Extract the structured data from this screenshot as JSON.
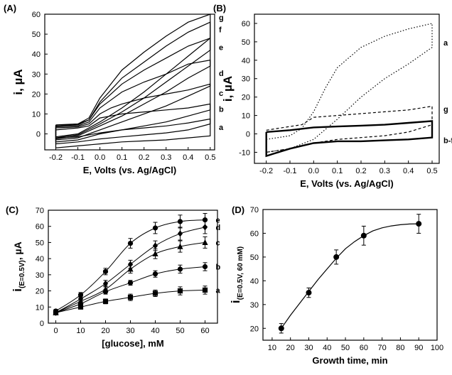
{
  "chart_data": [
    {
      "panel_label": "(A)",
      "type": "line",
      "xlabel": "E, Volts (vs. Ag/AgCl)",
      "ylabel": "i, µA",
      "xlim": [
        -0.25,
        0.52
      ],
      "ylim": [
        -8,
        60
      ],
      "x_ticks": [
        -0.2,
        -0.1,
        0.0,
        0.1,
        0.2,
        0.3,
        0.4,
        0.5
      ],
      "x_tick_labels": [
        "-0.2",
        "-0.1",
        "0.0",
        "0.1",
        "0.2",
        "0.3",
        "0.4",
        "0.5"
      ],
      "y_ticks": [
        0,
        10,
        20,
        30,
        40,
        50,
        60
      ],
      "y_tick_labels": [
        "0",
        "10",
        "20",
        "30",
        "40",
        "50",
        "60"
      ],
      "curve_type": "cyclic voltammogram",
      "series": [
        {
          "name": "a",
          "upper": [
            [
              -0.2,
              -2
            ],
            [
              -0.1,
              -1.5
            ],
            [
              0.0,
              0.5
            ],
            [
              0.1,
              2
            ],
            [
              0.2,
              3
            ],
            [
              0.3,
              4
            ],
            [
              0.4,
              5.5
            ],
            [
              0.5,
              7.5
            ]
          ],
          "lower": [
            [
              -0.2,
              -7
            ],
            [
              -0.1,
              -6
            ],
            [
              0.0,
              -5
            ],
            [
              0.1,
              -4
            ],
            [
              0.2,
              -3.5
            ],
            [
              0.3,
              -3
            ],
            [
              0.4,
              -2
            ],
            [
              0.5,
              -1
            ]
          ]
        },
        {
          "name": "b",
          "upper": [
            [
              -0.2,
              2
            ],
            [
              -0.1,
              3
            ],
            [
              -0.05,
              4
            ],
            [
              0.0,
              8
            ],
            [
              0.05,
              9
            ],
            [
              0.1,
              10
            ],
            [
              0.2,
              11
            ],
            [
              0.3,
              12
            ],
            [
              0.4,
              13
            ],
            [
              0.5,
              15
            ]
          ],
          "lower": [
            [
              -0.2,
              -5
            ],
            [
              -0.1,
              -4
            ],
            [
              0.0,
              -2.5
            ],
            [
              0.1,
              -1.5
            ],
            [
              0.2,
              -0.5
            ],
            [
              0.3,
              0.5
            ],
            [
              0.4,
              2
            ],
            [
              0.5,
              5
            ]
          ]
        },
        {
          "name": "c",
          "upper": [
            [
              -0.2,
              3
            ],
            [
              -0.1,
              3.5
            ],
            [
              -0.05,
              5
            ],
            [
              0.0,
              10
            ],
            [
              0.05,
              13
            ],
            [
              0.1,
              15
            ],
            [
              0.2,
              18
            ],
            [
              0.3,
              20
            ],
            [
              0.4,
              22
            ],
            [
              0.5,
              25
            ]
          ],
          "lower": [
            [
              -0.2,
              -4
            ],
            [
              -0.1,
              -3
            ],
            [
              0.0,
              0
            ],
            [
              0.1,
              2
            ],
            [
              0.2,
              4
            ],
            [
              0.3,
              6
            ],
            [
              0.4,
              9
            ],
            [
              0.5,
              12
            ]
          ]
        },
        {
          "name": "d",
          "upper": [
            [
              -0.2,
              3.5
            ],
            [
              -0.1,
              4
            ],
            [
              -0.05,
              6
            ],
            [
              0.0,
              13
            ],
            [
              0.05,
              17
            ],
            [
              0.1,
              21
            ],
            [
              0.2,
              26
            ],
            [
              0.3,
              30
            ],
            [
              0.4,
              35
            ],
            [
              0.5,
              37
            ]
          ],
          "lower": [
            [
              -0.2,
              -3
            ],
            [
              -0.1,
              -2
            ],
            [
              0.0,
              2
            ],
            [
              0.1,
              6
            ],
            [
              0.2,
              10
            ],
            [
              0.3,
              14
            ],
            [
              0.4,
              19
            ],
            [
              0.5,
              24
            ]
          ]
        },
        {
          "name": "e",
          "upper": [
            [
              -0.2,
              4
            ],
            [
              -0.1,
              4.5
            ],
            [
              -0.05,
              7
            ],
            [
              0.0,
              15
            ],
            [
              0.05,
              20
            ],
            [
              0.1,
              25
            ],
            [
              0.2,
              32
            ],
            [
              0.3,
              38
            ],
            [
              0.4,
              44
            ],
            [
              0.5,
              48
            ]
          ],
          "lower": [
            [
              -0.2,
              -2.5
            ],
            [
              -0.1,
              -1
            ],
            [
              0.0,
              4
            ],
            [
              0.1,
              9
            ],
            [
              0.2,
              15
            ],
            [
              0.3,
              21
            ],
            [
              0.4,
              28
            ],
            [
              0.5,
              34
            ]
          ]
        },
        {
          "name": "f",
          "upper": [
            [
              -0.2,
              4
            ],
            [
              -0.1,
              5
            ],
            [
              -0.05,
              7
            ],
            [
              0.0,
              16
            ],
            [
              0.05,
              22
            ],
            [
              0.1,
              28
            ],
            [
              0.2,
              36
            ],
            [
              0.3,
              44
            ],
            [
              0.4,
              51
            ],
            [
              0.5,
              56
            ]
          ],
          "lower": [
            [
              -0.2,
              -2
            ],
            [
              -0.1,
              -0.5
            ],
            [
              0.0,
              5
            ],
            [
              0.1,
              11
            ],
            [
              0.2,
              18
            ],
            [
              0.3,
              26
            ],
            [
              0.4,
              34
            ],
            [
              0.5,
              42
            ]
          ]
        },
        {
          "name": "g",
          "upper": [
            [
              -0.2,
              4.5
            ],
            [
              -0.1,
              5
            ],
            [
              -0.05,
              8
            ],
            [
              0.0,
              18
            ],
            [
              0.05,
              25
            ],
            [
              0.1,
              32
            ],
            [
              0.2,
              41
            ],
            [
              0.3,
              49
            ],
            [
              0.4,
              56
            ],
            [
              0.5,
              60
            ]
          ],
          "lower": [
            [
              -0.2,
              -1.5
            ],
            [
              -0.1,
              0
            ],
            [
              0.0,
              6
            ],
            [
              0.1,
              13
            ],
            [
              0.2,
              21
            ],
            [
              0.3,
              30
            ],
            [
              0.4,
              39
            ],
            [
              0.5,
              48
            ]
          ]
        }
      ],
      "grid": false
    },
    {
      "panel_label": "(B)",
      "type": "line",
      "xlabel": "E, Volts (vs. Ag/AgCl)",
      "ylabel": "i, µA",
      "xlim": [
        -0.25,
        0.53
      ],
      "ylim": [
        -16,
        65
      ],
      "x_ticks": [
        -0.2,
        -0.1,
        0.0,
        0.1,
        0.2,
        0.3,
        0.4,
        0.5
      ],
      "x_tick_labels": [
        "-0.2",
        "-0.1",
        "0.0",
        "0.1",
        "0.2",
        "0.3",
        "0.4",
        "0.5"
      ],
      "y_ticks": [
        -10,
        0,
        10,
        20,
        30,
        40,
        50,
        60
      ],
      "y_tick_labels": [
        "-10",
        "0",
        "10",
        "20",
        "30",
        "40",
        "50",
        "60"
      ],
      "curve_type": "cyclic voltammogram",
      "series": [
        {
          "name": "a",
          "line_style": "dotted",
          "upper": [
            [
              -0.2,
              -3
            ],
            [
              -0.1,
              -1
            ],
            [
              -0.05,
              3
            ],
            [
              0.0,
              12
            ],
            [
              0.05,
              25
            ],
            [
              0.1,
              36
            ],
            [
              0.2,
              47
            ],
            [
              0.3,
              53
            ],
            [
              0.4,
              57
            ],
            [
              0.5,
              60
            ]
          ],
          "lower": [
            [
              -0.2,
              -10
            ],
            [
              -0.1,
              -8
            ],
            [
              0.0,
              -3
            ],
            [
              0.1,
              8
            ],
            [
              0.2,
              20
            ],
            [
              0.3,
              30
            ],
            [
              0.4,
              38
            ],
            [
              0.5,
              47
            ]
          ]
        },
        {
          "name": "g",
          "line_style": "dashed",
          "upper": [
            [
              -0.2,
              2
            ],
            [
              -0.1,
              4
            ],
            [
              -0.05,
              5
            ],
            [
              0.0,
              9
            ],
            [
              0.1,
              10
            ],
            [
              0.2,
              11
            ],
            [
              0.3,
              12
            ],
            [
              0.4,
              13
            ],
            [
              0.5,
              15
            ]
          ],
          "lower": [
            [
              -0.2,
              -10
            ],
            [
              -0.1,
              -8
            ],
            [
              0.0,
              -5
            ],
            [
              0.1,
              -3
            ],
            [
              0.2,
              -2
            ],
            [
              0.3,
              -1
            ],
            [
              0.4,
              1
            ],
            [
              0.5,
              5
            ]
          ]
        },
        {
          "name": "b-f",
          "line_style": "solid",
          "upper": [
            [
              -0.2,
              1
            ],
            [
              -0.1,
              2
            ],
            [
              0.0,
              3.5
            ],
            [
              0.1,
              4
            ],
            [
              0.2,
              4.5
            ],
            [
              0.3,
              5
            ],
            [
              0.4,
              6
            ],
            [
              0.5,
              7
            ]
          ],
          "lower": [
            [
              -0.2,
              -12
            ],
            [
              -0.1,
              -8
            ],
            [
              0.0,
              -5
            ],
            [
              0.1,
              -4
            ],
            [
              0.2,
              -4
            ],
            [
              0.3,
              -3.5
            ],
            [
              0.4,
              -3
            ],
            [
              0.5,
              -2
            ]
          ]
        }
      ],
      "grid": false
    },
    {
      "panel_label": "(C)",
      "type": "scatter",
      "xlabel": "[glucose], mM",
      "ylabel_main": "i",
      "ylabel_sub": "(E=0.5V)",
      "ylabel_unit": ", µA",
      "xlim": [
        -3,
        65
      ],
      "ylim": [
        0,
        70
      ],
      "x_ticks": [
        0,
        10,
        20,
        30,
        40,
        50,
        60
      ],
      "x_tick_labels": [
        "0",
        "10",
        "20",
        "30",
        "40",
        "50",
        "60"
      ],
      "y_ticks": [
        0,
        10,
        20,
        30,
        40,
        50,
        60,
        70
      ],
      "y_tick_labels": [
        "0",
        "10",
        "20",
        "30",
        "40",
        "50",
        "60",
        "70"
      ],
      "x": [
        0,
        10,
        20,
        30,
        40,
        50,
        60
      ],
      "series": [
        {
          "name": "a",
          "marker": "square",
          "values": [
            6.5,
            10,
            13.5,
            16,
            18.5,
            20,
            20.5
          ],
          "errors": [
            1,
            1,
            1.5,
            2,
            2,
            2.5,
            2.5
          ]
        },
        {
          "name": "b",
          "marker": "circle",
          "values": [
            6.5,
            12,
            19.5,
            25,
            30.5,
            33.5,
            35
          ],
          "errors": [
            1,
            1.5,
            1.5,
            1.5,
            2,
            2.5,
            2.5
          ]
        },
        {
          "name": "c",
          "marker": "triangle",
          "values": [
            6.5,
            13.5,
            21,
            33.5,
            43,
            47.5,
            50
          ],
          "errors": [
            1,
            1.5,
            2,
            2.5,
            3,
            3.5,
            3.5
          ]
        },
        {
          "name": "d",
          "marker": "diamond",
          "values": [
            6.5,
            15,
            24.5,
            36.5,
            48,
            55.5,
            59.5
          ],
          "errors": [
            1,
            1.5,
            2,
            2.5,
            3,
            4,
            4
          ]
        },
        {
          "name": "e",
          "marker": "circle",
          "values": [
            7.5,
            17.5,
            32,
            49.5,
            59,
            63,
            64
          ],
          "errors": [
            1,
            1.5,
            2,
            3,
            3.5,
            4,
            4
          ]
        }
      ],
      "grid": false
    },
    {
      "panel_label": "(D)",
      "type": "scatter",
      "xlabel": "Growth time, min",
      "ylabel_main": "i",
      "ylabel_sub": "(E=0.5V, 60 mM)",
      "xlim": [
        5,
        100
      ],
      "ylim": [
        15,
        70
      ],
      "x_ticks": [
        10,
        20,
        30,
        40,
        50,
        60,
        70,
        80,
        90,
        100
      ],
      "x_tick_labels": [
        "10",
        "20",
        "30",
        "40",
        "50",
        "60",
        "70",
        "80",
        "90",
        "100"
      ],
      "y_ticks": [
        20,
        30,
        40,
        50,
        60,
        70
      ],
      "y_tick_labels": [
        "20",
        "30",
        "40",
        "50",
        "60",
        "70"
      ],
      "x": [
        15,
        30,
        45,
        60,
        90
      ],
      "values": [
        20,
        35,
        50,
        59,
        64
      ],
      "errors": [
        2,
        2,
        3,
        4,
        4
      ],
      "fit": [
        [
          15,
          20
        ],
        [
          20,
          25.5
        ],
        [
          25,
          30.5
        ],
        [
          30,
          35.5
        ],
        [
          35,
          40.5
        ],
        [
          40,
          45
        ],
        [
          45,
          49.5
        ],
        [
          50,
          53.5
        ],
        [
          55,
          56.5
        ],
        [
          60,
          59
        ],
        [
          65,
          61
        ],
        [
          70,
          62.3
        ],
        [
          75,
          63.1
        ],
        [
          80,
          63.6
        ],
        [
          85,
          63.9
        ],
        [
          90,
          64
        ]
      ],
      "grid": false
    }
  ]
}
